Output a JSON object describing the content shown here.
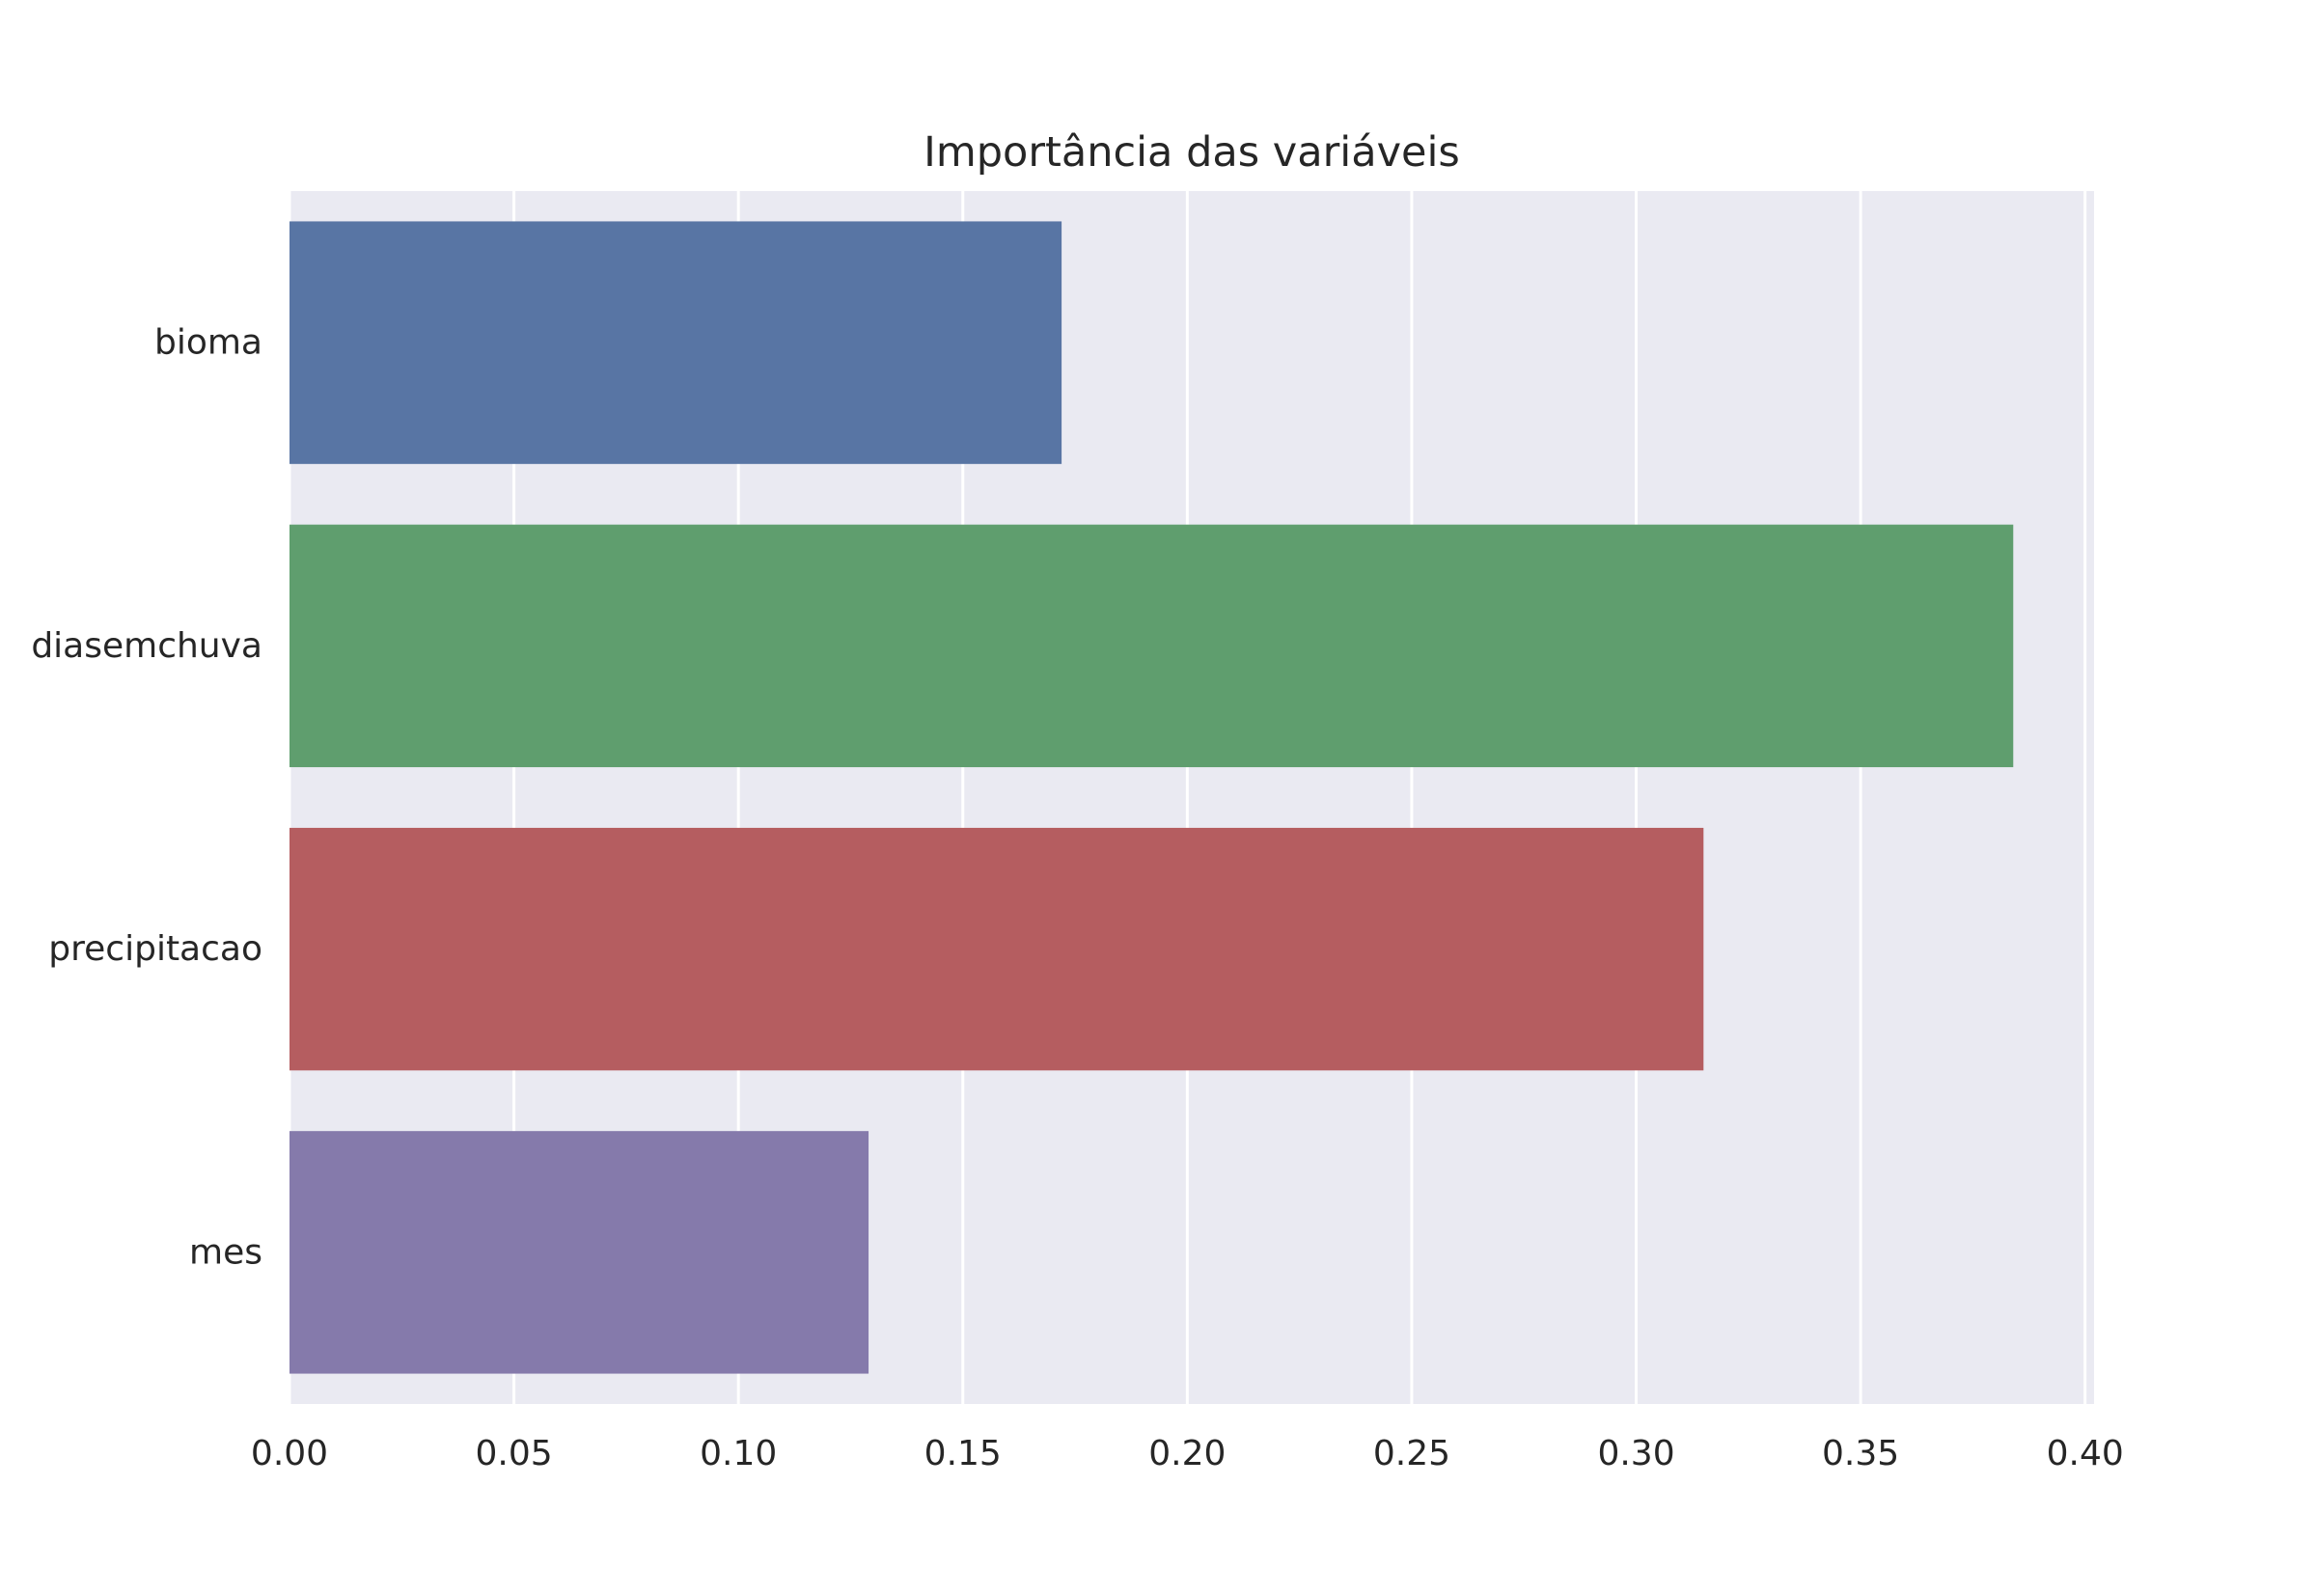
{
  "chart_data": {
    "type": "bar",
    "orientation": "horizontal",
    "title": "Importância das variáveis",
    "xlabel": "",
    "ylabel": "",
    "categories": [
      "bioma",
      "diasemchuva",
      "precipitacao",
      "mes"
    ],
    "values": [
      0.172,
      0.384,
      0.315,
      0.129
    ],
    "colors": [
      "#5875a4",
      "#5f9e6e",
      "#b55d60",
      "#857aab"
    ],
    "xlim": [
      0,
      0.402
    ],
    "xticks": [
      0.0,
      0.05,
      0.1,
      0.15,
      0.2,
      0.25,
      0.3,
      0.35,
      0.4
    ],
    "xtick_labels": [
      "0.00",
      "0.05",
      "0.10",
      "0.15",
      "0.20",
      "0.25",
      "0.30",
      "0.35",
      "0.40"
    ],
    "grid": true,
    "grid_axis": "x",
    "background_color": "#eaeaf2",
    "grid_color": "#ffffff"
  }
}
